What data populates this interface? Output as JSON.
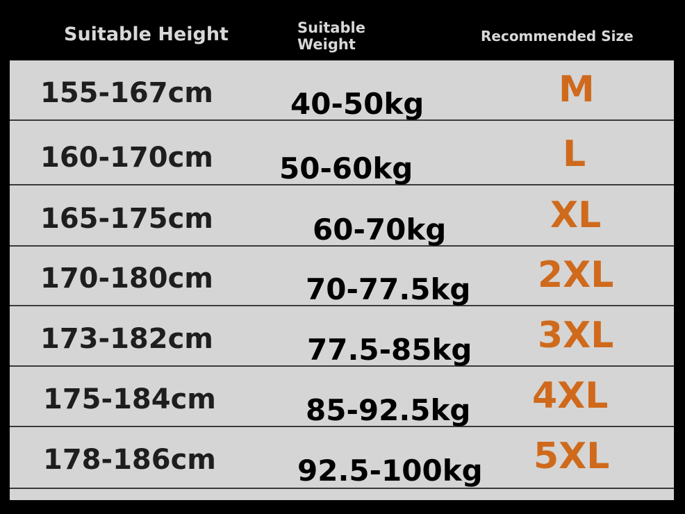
{
  "headers": {
    "height": "Suitable Height",
    "weight_line1": "Suitable",
    "weight_line2": "Weight",
    "size": "Recommended Size"
  },
  "rows": [
    {
      "height": "155-167cm",
      "weight": "40-50kg",
      "size": "M"
    },
    {
      "height": "160-170cm",
      "weight": "50-60kg",
      "size": "L"
    },
    {
      "height": "165-175cm",
      "weight": "60-70kg",
      "size": "XL"
    },
    {
      "height": "170-180cm",
      "weight": "70-77.5kg",
      "size": "2XL"
    },
    {
      "height": "173-182cm",
      "weight": "77.5-85kg",
      "size": "3XL"
    },
    {
      "height": "175-184cm",
      "weight": "85-92.5kg",
      "size": "4XL"
    },
    {
      "height": "178-186cm",
      "weight": "92.5-100kg",
      "size": "5XL"
    }
  ],
  "colors": {
    "header_bg": "#000000",
    "table_bg": "#d5d5d5",
    "size_accent": "#cf6a1c"
  }
}
